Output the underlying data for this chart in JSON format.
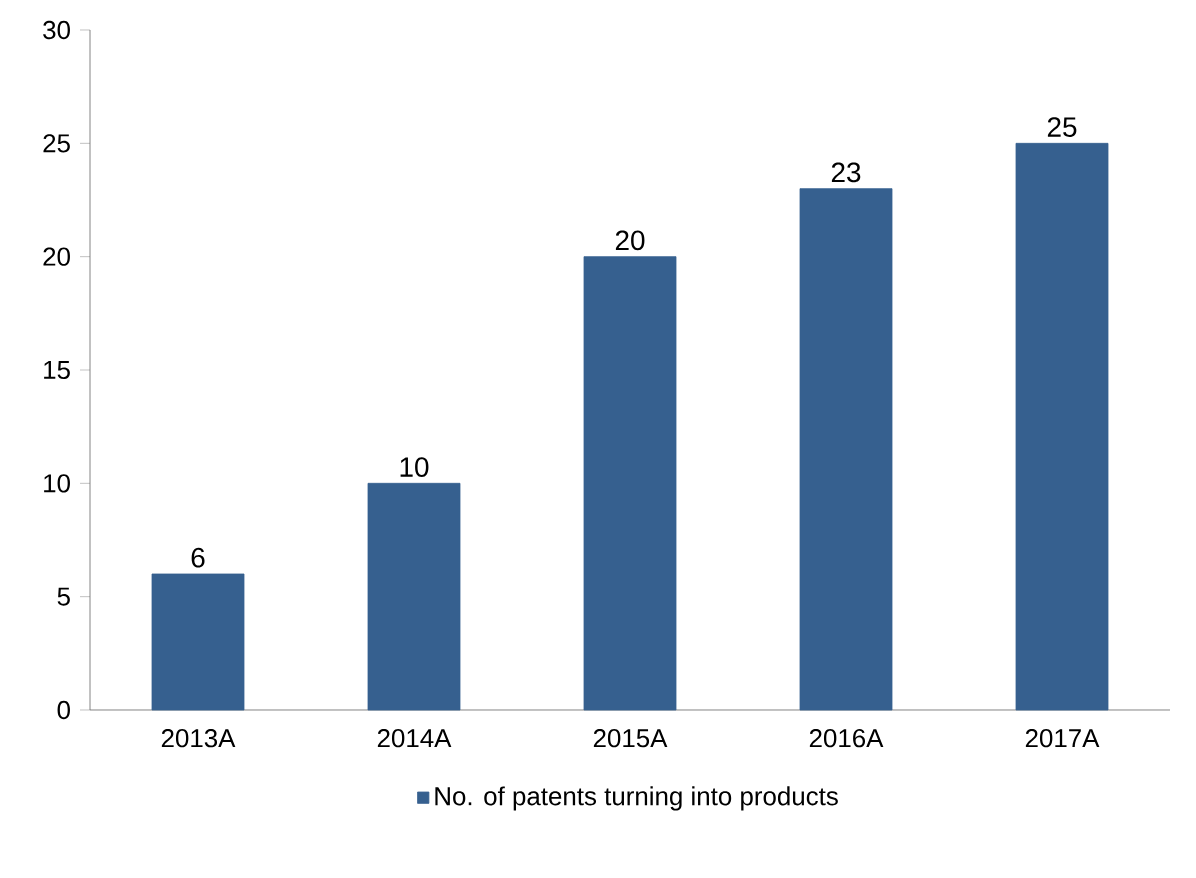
{
  "chart_data": {
    "type": "bar",
    "categories": [
      "2013A",
      "2014A",
      "2015A",
      "2016A",
      "2017A"
    ],
    "series": [
      {
        "name": "No. of patents turning into products",
        "color": "#36608f",
        "values": [
          6,
          10,
          20,
          23,
          25
        ]
      }
    ],
    "ylim": [
      0,
      30
    ],
    "yticks": [
      0,
      5,
      10,
      15,
      20,
      25,
      30
    ],
    "data_labels": true,
    "legend": "bottom",
    "grid": false
  }
}
